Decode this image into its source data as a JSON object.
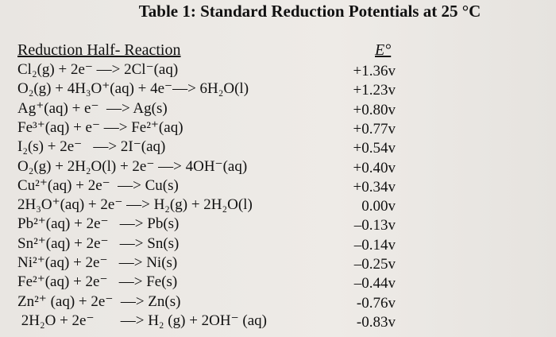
{
  "header": {
    "title": "Table 1: Standard Reduction Potentials at 25 °C"
  },
  "table": {
    "columns": [
      "Reduction Half- Reaction",
      "E°"
    ],
    "rows": [
      [
        "Cl₂(g) + 2e⁻ —> 2Cl⁻(aq)",
        "+1.36v"
      ],
      [
        "O₂(g) + 4H₃O⁺(aq) + 4e⁻—> 6H₂O(l)",
        "+1.23v"
      ],
      [
        "Ag⁺(aq) + e⁻  —> Ag(s)",
        "+0.80v"
      ],
      [
        "Fe³⁺(aq) + e⁻ —> Fe²⁺(aq)",
        "+0.77v"
      ],
      [
        "I₂(s) + 2e⁻   —> 2I⁻(aq)",
        "+0.54v"
      ],
      [
        "O₂(g) + 2H₂O(l) + 2e⁻ —> 4OH⁻(aq)",
        "+0.40v"
      ],
      [
        "Cu²⁺(aq) + 2e⁻  —> Cu(s)",
        "+0.34v"
      ],
      [
        "2H₃O⁺(aq) + 2e⁻ —> H₂(g) + 2H₂O(l)",
        "0.00v"
      ],
      [
        "Pb²⁺(aq) + 2e⁻   —> Pb(s)",
        "–0.13v"
      ],
      [
        "Sn²⁺(aq) + 2e⁻   —> Sn(s)",
        "–0.14v"
      ],
      [
        "Ni²⁺(aq) + 2e⁻   —> Ni(s)",
        "–0.25v"
      ],
      [
        "Fe²⁺(aq) + 2e⁻   —> Fe(s)",
        "–0.44v"
      ],
      [
        "Zn²⁺ (aq) + 2e⁻  —> Zn(s)",
        "-0.76v"
      ],
      [
        " 2H₂O + 2e⁻       —> H₂ (g) + 2OH⁻ (aq)",
        "-0.83v"
      ]
    ]
  }
}
